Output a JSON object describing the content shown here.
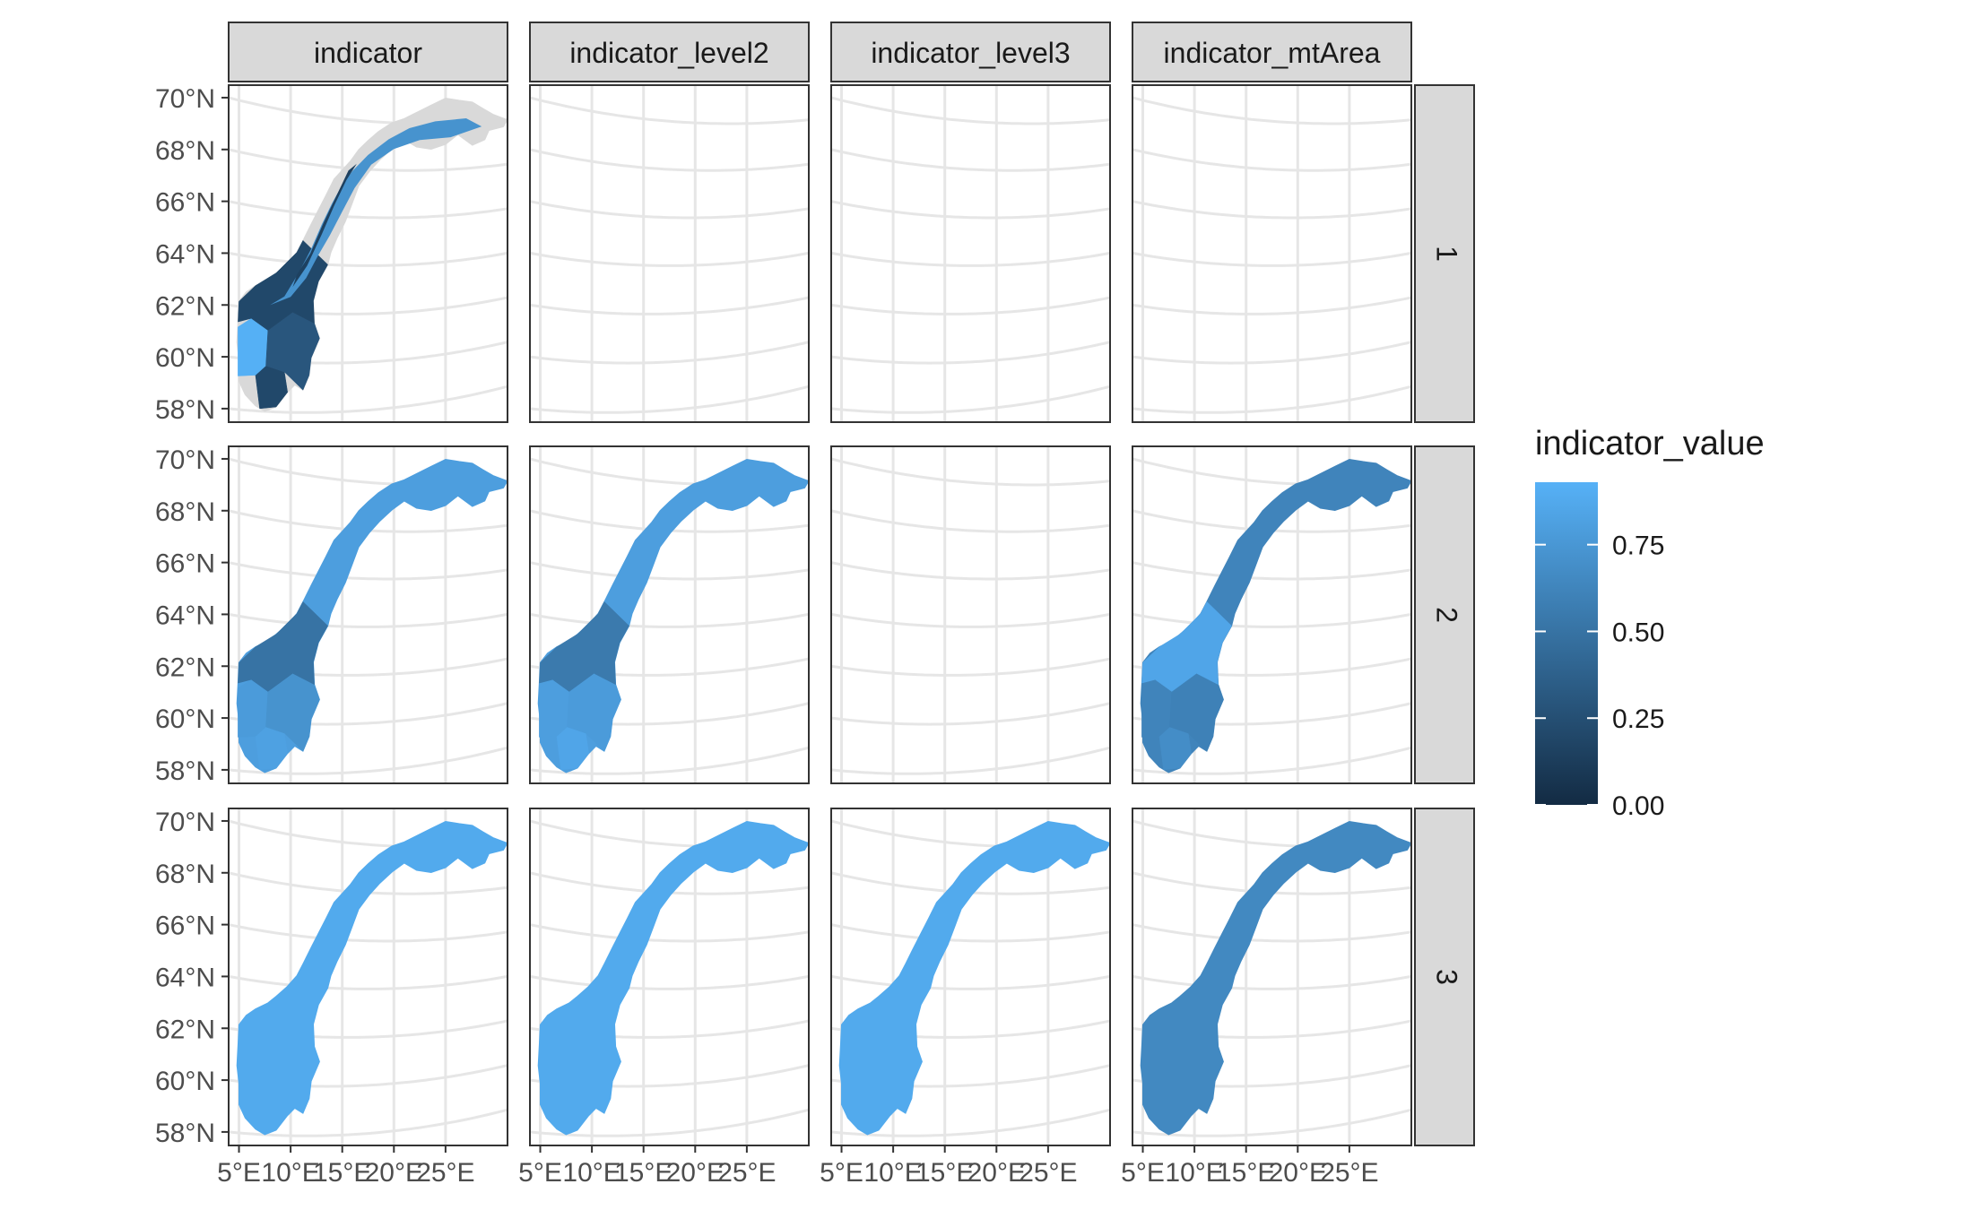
{
  "chart_data": {
    "type": "heatmap",
    "subtype": "faceted choropleth map",
    "facet_columns": [
      "indicator",
      "indicator_level2",
      "indicator_level3",
      "indicator_mtArea"
    ],
    "facet_rows": [
      "1",
      "2",
      "3"
    ],
    "panels_with_data": [
      [
        true,
        false,
        false,
        false
      ],
      [
        true,
        true,
        false,
        true
      ],
      [
        true,
        true,
        true,
        true
      ]
    ],
    "panel_fill_values": [
      [
        0.45,
        null,
        null,
        null
      ],
      [
        0.8,
        0.8,
        null,
        0.62
      ],
      [
        0.88,
        0.88,
        0.88,
        0.65
      ]
    ],
    "sub_region_values": [
      [
        [
          0.2,
          0.92,
          0.3,
          0.2
        ],
        null,
        null,
        null
      ],
      [
        [
          0.82,
          0.78,
          0.72,
          0.5
        ],
        [
          0.85,
          0.8,
          0.78,
          0.55
        ],
        null,
        [
          0.68,
          0.62,
          0.6,
          0.85
        ]
      ],
      [
        null,
        null,
        null,
        null
      ]
    ],
    "x_axis": {
      "ticks": [
        "5°E",
        "10°E",
        "15°E",
        "20°E",
        "25°E"
      ],
      "range": [
        4,
        31
      ]
    },
    "y_axis": {
      "ticks": [
        "58°N",
        "60°N",
        "62°N",
        "64°N",
        "66°N",
        "68°N",
        "70°N"
      ],
      "range": [
        57.5,
        71.5
      ]
    },
    "legend": {
      "title": "indicator_value",
      "labels": [
        "0.00",
        "0.25",
        "0.50",
        "0.75"
      ],
      "values": [
        0,
        0.25,
        0.5,
        0.75
      ],
      "range": [
        0,
        0.93
      ],
      "placement": "right",
      "color_low": "#132B43",
      "color_high": "#56B1F7"
    },
    "grid": true,
    "na_color": "#d9d9d9",
    "theme": "bw"
  }
}
